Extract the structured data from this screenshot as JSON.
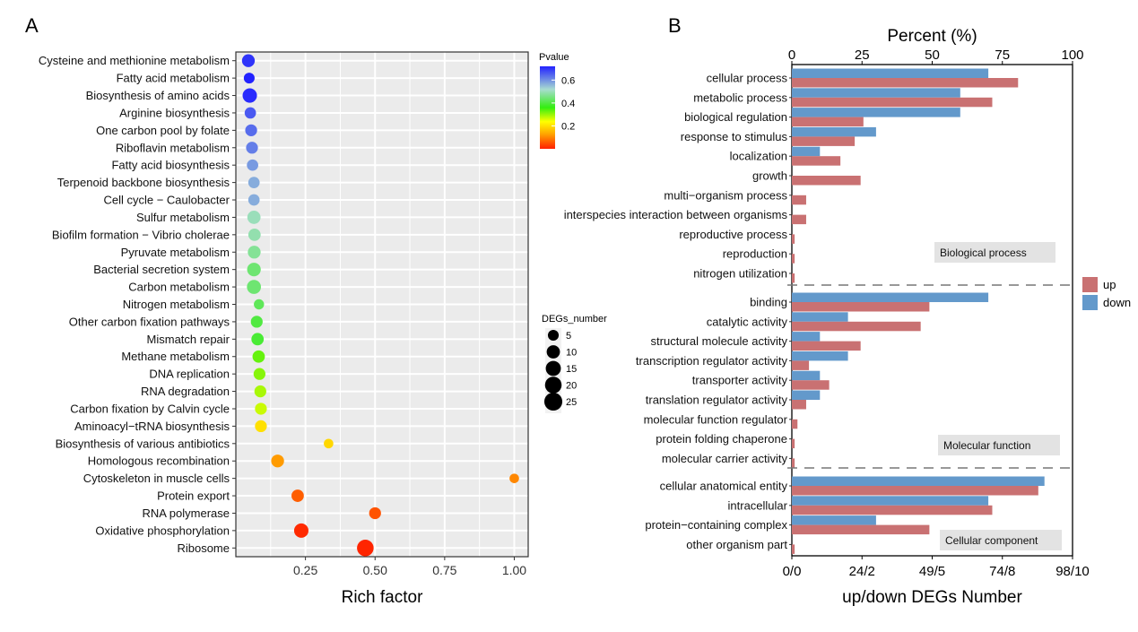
{
  "panels": {
    "a_label": "A",
    "b_label": "B"
  },
  "chart_data": [
    {
      "type": "scatter",
      "panel": "A",
      "title": "",
      "xlabel": "Rich factor",
      "ylabel": "",
      "xlim": [
        0.0,
        1.05
      ],
      "xticks": [
        0.25,
        0.5,
        0.75,
        1.0
      ],
      "xtick_labels": [
        "0.25",
        "0.50",
        "0.75",
        "1.00"
      ],
      "grid": true,
      "categories": [
        "Cysteine and methionine metabolism",
        "Fatty acid metabolism",
        "Biosynthesis of amino acids",
        "Arginine biosynthesis",
        "One carbon pool by folate",
        "Riboflavin metabolism",
        "Fatty acid biosynthesis",
        "Terpenoid backbone biosynthesis",
        "Cell cycle − Caulobacter",
        "Sulfur metabolism",
        "Biofilm formation − Vibrio cholerae",
        "Pyruvate metabolism",
        "Bacterial secretion system",
        "Carbon metabolism",
        "Nitrogen metabolism",
        "Other carbon fixation pathways",
        "Mismatch repair",
        "Methane metabolism",
        "DNA replication",
        "RNA degradation",
        "Carbon fixation by Calvin cycle",
        "Aminoacyl−tRNA biosynthesis",
        "Biosynthesis of various antibiotics",
        "Homologous recombination",
        "Cytoskeleton in muscle cells",
        "Protein export",
        "RNA polymerase",
        "Oxidative phosphorylation",
        "Ribosome"
      ],
      "rich_factor": [
        0.045,
        0.048,
        0.05,
        0.052,
        0.055,
        0.058,
        0.06,
        0.065,
        0.065,
        0.065,
        0.067,
        0.066,
        0.065,
        0.065,
        0.083,
        0.075,
        0.078,
        0.082,
        0.085,
        0.088,
        0.09,
        0.09,
        0.333,
        0.15,
        1.0,
        0.222,
        0.5,
        0.235,
        0.465
      ],
      "degs_number": [
        9,
        5,
        13,
        6,
        7,
        7,
        6,
        6,
        6,
        10,
        8,
        9,
        11,
        12,
        4,
        7,
        8,
        8,
        7,
        7,
        7,
        7,
        3,
        9,
        3,
        8,
        7,
        13,
        20
      ],
      "pvalue": [
        0.7,
        0.72,
        0.71,
        0.66,
        0.64,
        0.62,
        0.59,
        0.57,
        0.57,
        0.5,
        0.49,
        0.47,
        0.44,
        0.44,
        0.42,
        0.4,
        0.39,
        0.33,
        0.31,
        0.29,
        0.27,
        0.2,
        0.19,
        0.12,
        0.1,
        0.06,
        0.05,
        0.01,
        0.005
      ],
      "color_legend": {
        "title": "Pvalue",
        "ticks": [
          0.6,
          0.4,
          0.2
        ],
        "tick_labels": [
          "0.6",
          "0.4",
          "0.2"
        ],
        "range": [
          0.0,
          0.72
        ],
        "placement": "top-right"
      },
      "size_legend": {
        "title": "DEGs_number",
        "values": [
          5,
          10,
          15,
          20,
          25
        ],
        "labels": [
          "5",
          "10",
          "15",
          "20",
          "25"
        ],
        "placement": "right"
      }
    },
    {
      "type": "bar",
      "panel": "B",
      "orientation": "horizontal",
      "title": "",
      "top_axis_label": "Percent (%)",
      "top_ticks": [
        "0",
        "25",
        "50",
        "75",
        "100"
      ],
      "xlabel": "up/down DEGs Number",
      "bottom_ticks": [
        "0/0",
        "24/2",
        "49/5",
        "74/8",
        "98/10"
      ],
      "xlim": [
        0,
        100
      ],
      "legend": {
        "placement": "right",
        "entries": [
          {
            "name": "up",
            "color": "#c97172"
          },
          {
            "name": "down",
            "color": "#6399cb"
          }
        ]
      },
      "groups": [
        {
          "name": "Biological process",
          "categories": [
            "cellular process",
            "metabolic process",
            "biological regulation",
            "response to stimulus",
            "localization",
            "growth",
            "multi−organism process",
            "interspecies interaction between organisms",
            "reproductive process",
            "reproduction",
            "nitrogen utilization"
          ],
          "series": [
            {
              "name": "down",
              "values": [
                70,
                60,
                60,
                30,
                10,
                0,
                0,
                0,
                0,
                0,
                0
              ]
            },
            {
              "name": "up",
              "values": [
                80.6,
                71.4,
                25.5,
                22.4,
                17.3,
                24.5,
                5.1,
                5.1,
                1.0,
                1.0,
                1.0
              ]
            }
          ]
        },
        {
          "name": "Molecular function",
          "categories": [
            "binding",
            "catalytic activity",
            "structural molecule activity",
            "transcription regulator activity",
            "transporter activity",
            "translation regulator activity",
            "molecular function regulator",
            "protein folding chaperone",
            "molecular carrier activity"
          ],
          "series": [
            {
              "name": "down",
              "values": [
                70,
                20,
                10,
                20,
                10,
                10,
                0,
                0,
                0
              ]
            },
            {
              "name": "up",
              "values": [
                49.0,
                45.9,
                24.5,
                6.1,
                13.3,
                5.1,
                2.0,
                1.0,
                1.0
              ]
            }
          ]
        },
        {
          "name": "Cellular component",
          "categories": [
            "cellular anatomical entity",
            "intracellular",
            "protein−containing complex",
            "other organism part"
          ],
          "series": [
            {
              "name": "down",
              "values": [
                90,
                70,
                30,
                0
              ]
            },
            {
              "name": "up",
              "values": [
                87.8,
                71.4,
                49.0,
                1.0
              ]
            }
          ]
        }
      ]
    }
  ]
}
